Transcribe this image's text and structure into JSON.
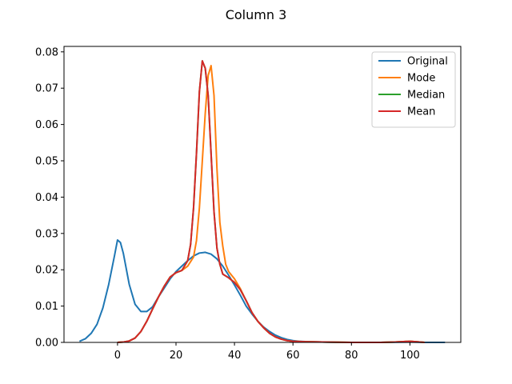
{
  "chart_data": {
    "type": "line",
    "title": "Column 3",
    "xlabel": "",
    "ylabel": "",
    "xlim": [
      -18.3,
      117.4
    ],
    "ylim": [
      0,
      0.0815
    ],
    "x_ticks": [
      0,
      20,
      40,
      60,
      80,
      100
    ],
    "y_ticks": [
      0.0,
      0.01,
      0.02,
      0.03,
      0.04,
      0.05,
      0.06,
      0.07,
      0.08
    ],
    "x_tick_labels": [
      "0",
      "20",
      "40",
      "60",
      "80",
      "100"
    ],
    "y_tick_labels": [
      "0.00",
      "0.01",
      "0.02",
      "0.03",
      "0.04",
      "0.05",
      "0.06",
      "0.07",
      "0.08"
    ],
    "grid": false,
    "legend_position": "top-right",
    "series": [
      {
        "name": "Original",
        "color": "#1f77b4",
        "points": [
          [
            -13,
            0.0003
          ],
          [
            -11,
            0.001
          ],
          [
            -9,
            0.0025
          ],
          [
            -7,
            0.005
          ],
          [
            -5,
            0.0095
          ],
          [
            -3,
            0.016
          ],
          [
            -1,
            0.024
          ],
          [
            0,
            0.0282
          ],
          [
            1,
            0.0275
          ],
          [
            2,
            0.0245
          ],
          [
            4,
            0.016
          ],
          [
            6,
            0.0105
          ],
          [
            8,
            0.0085
          ],
          [
            10,
            0.0085
          ],
          [
            12,
            0.0098
          ],
          [
            14,
            0.0125
          ],
          [
            16,
            0.015
          ],
          [
            18,
            0.0175
          ],
          [
            20,
            0.0195
          ],
          [
            22,
            0.021
          ],
          [
            24,
            0.0225
          ],
          [
            26,
            0.0238
          ],
          [
            28,
            0.0246
          ],
          [
            30,
            0.0248
          ],
          [
            32,
            0.0243
          ],
          [
            34,
            0.023
          ],
          [
            36,
            0.021
          ],
          [
            38,
            0.0185
          ],
          [
            40,
            0.0158
          ],
          [
            42,
            0.013
          ],
          [
            44,
            0.01
          ],
          [
            46,
            0.0078
          ],
          [
            48,
            0.0058
          ],
          [
            50,
            0.0042
          ],
          [
            52,
            0.003
          ],
          [
            54,
            0.002
          ],
          [
            56,
            0.0013
          ],
          [
            58,
            0.0008
          ],
          [
            60,
            0.0005
          ],
          [
            62,
            0.0003
          ],
          [
            65,
            0.0002
          ],
          [
            70,
            0.0001
          ],
          [
            75,
            0.0
          ],
          [
            80,
            0.0
          ],
          [
            90,
            0.0
          ],
          [
            100,
            0.0001
          ],
          [
            105,
            0.0
          ],
          [
            112,
            0.0
          ]
        ]
      },
      {
        "name": "Mode",
        "color": "#ff7f0e",
        "points": [
          [
            0,
            0.0
          ],
          [
            2,
            0.0001
          ],
          [
            4,
            0.0004
          ],
          [
            6,
            0.0012
          ],
          [
            8,
            0.003
          ],
          [
            10,
            0.0058
          ],
          [
            12,
            0.0092
          ],
          [
            14,
            0.0125
          ],
          [
            16,
            0.0155
          ],
          [
            18,
            0.018
          ],
          [
            20,
            0.0192
          ],
          [
            22,
            0.0198
          ],
          [
            24,
            0.021
          ],
          [
            26,
            0.0235
          ],
          [
            27,
            0.028
          ],
          [
            28,
            0.037
          ],
          [
            29,
            0.05
          ],
          [
            30,
            0.063
          ],
          [
            31,
            0.0735
          ],
          [
            32,
            0.0762
          ],
          [
            33,
            0.068
          ],
          [
            34,
            0.048
          ],
          [
            35,
            0.033
          ],
          [
            36,
            0.0265
          ],
          [
            37,
            0.0215
          ],
          [
            38,
            0.0195
          ],
          [
            40,
            0.0175
          ],
          [
            42,
            0.0148
          ],
          [
            44,
            0.0115
          ],
          [
            46,
            0.0082
          ],
          [
            48,
            0.0058
          ],
          [
            50,
            0.004
          ],
          [
            52,
            0.0025
          ],
          [
            54,
            0.0015
          ],
          [
            56,
            0.0009
          ],
          [
            58,
            0.0005
          ],
          [
            60,
            0.0003
          ],
          [
            64,
            0.0002
          ],
          [
            70,
            0.0001
          ],
          [
            80,
            0.0
          ],
          [
            90,
            0.0
          ],
          [
            95,
            0.0001
          ],
          [
            100,
            0.0003
          ],
          [
            102,
            0.0002
          ],
          [
            105,
            0.0
          ]
        ]
      },
      {
        "name": "Median",
        "color": "#2ca02c",
        "points": [
          [
            0,
            0.0
          ],
          [
            2,
            0.0001
          ],
          [
            4,
            0.0004
          ],
          [
            6,
            0.0012
          ],
          [
            8,
            0.003
          ],
          [
            10,
            0.0058
          ],
          [
            12,
            0.0092
          ],
          [
            14,
            0.0125
          ],
          [
            16,
            0.0155
          ],
          [
            18,
            0.018
          ],
          [
            20,
            0.0192
          ],
          [
            22,
            0.0198
          ],
          [
            24,
            0.0225
          ],
          [
            25,
            0.027
          ],
          [
            26,
            0.037
          ],
          [
            27,
            0.052
          ],
          [
            28,
            0.069
          ],
          [
            29,
            0.0775
          ],
          [
            30,
            0.0755
          ],
          [
            31,
            0.068
          ],
          [
            32,
            0.052
          ],
          [
            33,
            0.036
          ],
          [
            34,
            0.026
          ],
          [
            35,
            0.0215
          ],
          [
            36,
            0.0188
          ],
          [
            38,
            0.0178
          ],
          [
            40,
            0.0165
          ],
          [
            42,
            0.0145
          ],
          [
            44,
            0.0115
          ],
          [
            46,
            0.0082
          ],
          [
            48,
            0.0058
          ],
          [
            50,
            0.004
          ],
          [
            52,
            0.0025
          ],
          [
            54,
            0.0015
          ],
          [
            56,
            0.0009
          ],
          [
            58,
            0.0005
          ],
          [
            60,
            0.0003
          ],
          [
            64,
            0.0002
          ],
          [
            70,
            0.0001
          ],
          [
            80,
            0.0
          ],
          [
            90,
            0.0
          ],
          [
            95,
            0.0001
          ],
          [
            100,
            0.0003
          ],
          [
            102,
            0.0002
          ],
          [
            105,
            0.0
          ]
        ]
      },
      {
        "name": "Mean",
        "color": "#d62728",
        "points": [
          [
            0,
            0.0
          ],
          [
            2,
            0.0001
          ],
          [
            4,
            0.0004
          ],
          [
            6,
            0.0012
          ],
          [
            8,
            0.003
          ],
          [
            10,
            0.0058
          ],
          [
            12,
            0.0092
          ],
          [
            14,
            0.0125
          ],
          [
            16,
            0.0155
          ],
          [
            18,
            0.018
          ],
          [
            20,
            0.0192
          ],
          [
            22,
            0.0198
          ],
          [
            24,
            0.0225
          ],
          [
            25,
            0.027
          ],
          [
            26,
            0.037
          ],
          [
            27,
            0.052
          ],
          [
            28,
            0.069
          ],
          [
            29,
            0.0775
          ],
          [
            30,
            0.0755
          ],
          [
            31,
            0.068
          ],
          [
            32,
            0.052
          ],
          [
            33,
            0.036
          ],
          [
            34,
            0.026
          ],
          [
            35,
            0.0215
          ],
          [
            36,
            0.0188
          ],
          [
            38,
            0.0178
          ],
          [
            40,
            0.0165
          ],
          [
            42,
            0.0145
          ],
          [
            44,
            0.0115
          ],
          [
            46,
            0.0082
          ],
          [
            48,
            0.0058
          ],
          [
            50,
            0.004
          ],
          [
            52,
            0.0025
          ],
          [
            54,
            0.0015
          ],
          [
            56,
            0.0009
          ],
          [
            58,
            0.0005
          ],
          [
            60,
            0.0003
          ],
          [
            64,
            0.0002
          ],
          [
            70,
            0.0001
          ],
          [
            80,
            0.0
          ],
          [
            90,
            0.0
          ],
          [
            95,
            0.0001
          ],
          [
            100,
            0.0003
          ],
          [
            102,
            0.0002
          ],
          [
            105,
            0.0
          ]
        ]
      }
    ]
  }
}
